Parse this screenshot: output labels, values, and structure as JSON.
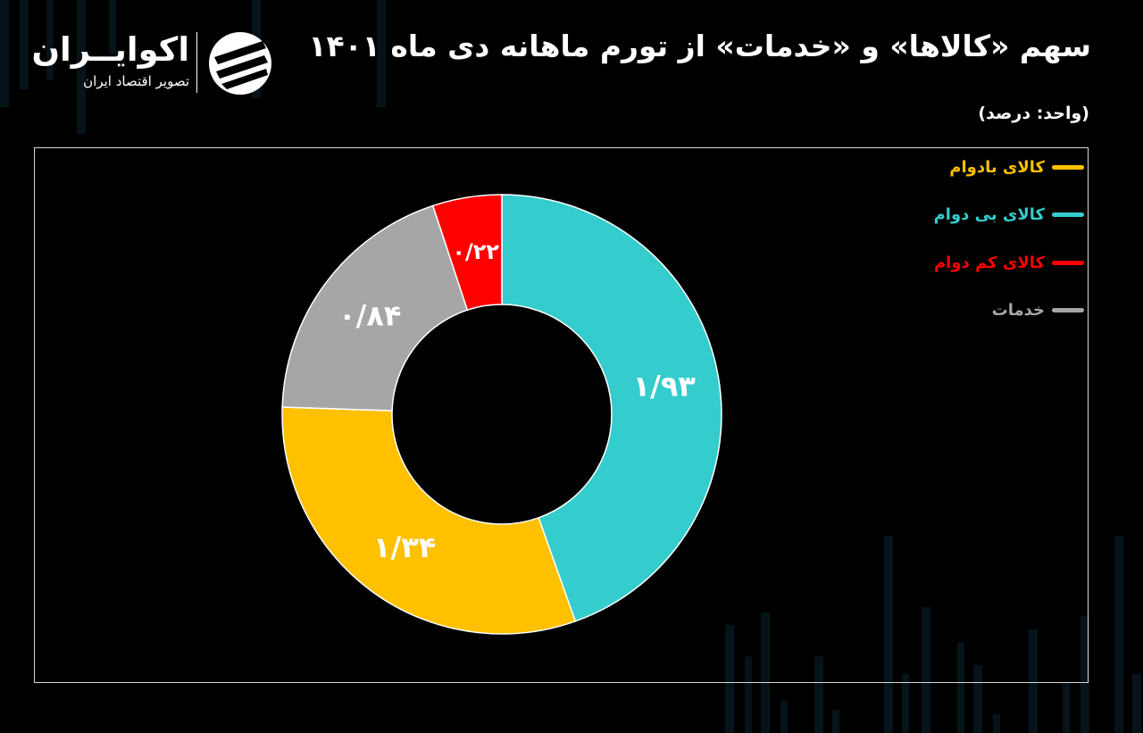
{
  "header": {
    "title": "سهم «کالاها» و «خدمات» از تورم ماهانه دی ماه ۱۴۰۱",
    "unit_label": "(واحد: درصد)"
  },
  "brand": {
    "name": "اکوایــران",
    "tagline": "تصویر اقتصاد ایران",
    "icon": "ecoiran-logo-icon"
  },
  "colors": {
    "background": "#000000",
    "frame": "#d9d9d9",
    "background_bars": "#0b2230"
  },
  "chart_data": {
    "type": "pie",
    "donut": true,
    "categories": [
      "کالای بادوام",
      "کالای بی دوام",
      "کالای کم دوام",
      "خدمات"
    ],
    "values": [
      1.34,
      1.93,
      0.22,
      0.84
    ],
    "value_labels": [
      "۱/۳۴",
      "۱/۹۳",
      "۰/۲۲",
      "۰/۸۴"
    ],
    "colors": [
      "#FFC000",
      "#34CCCC",
      "#FF0000",
      "#A6A6A6"
    ],
    "label_colors": [
      "#FFC000",
      "#34CCCC",
      "#FF0000",
      "#A6A6A6"
    ],
    "slice_order_clockwise_from_top": [
      "کالای بی دوام",
      "کالای بادوام",
      "خدمات",
      "کالای کم دوام"
    ],
    "legend_position": "top-right",
    "title": "سهم «کالاها» و «خدمات» از تورم ماهانه دی ماه ۱۴۰۱",
    "xlabel": "",
    "ylabel": "(واحد: درصد)"
  }
}
